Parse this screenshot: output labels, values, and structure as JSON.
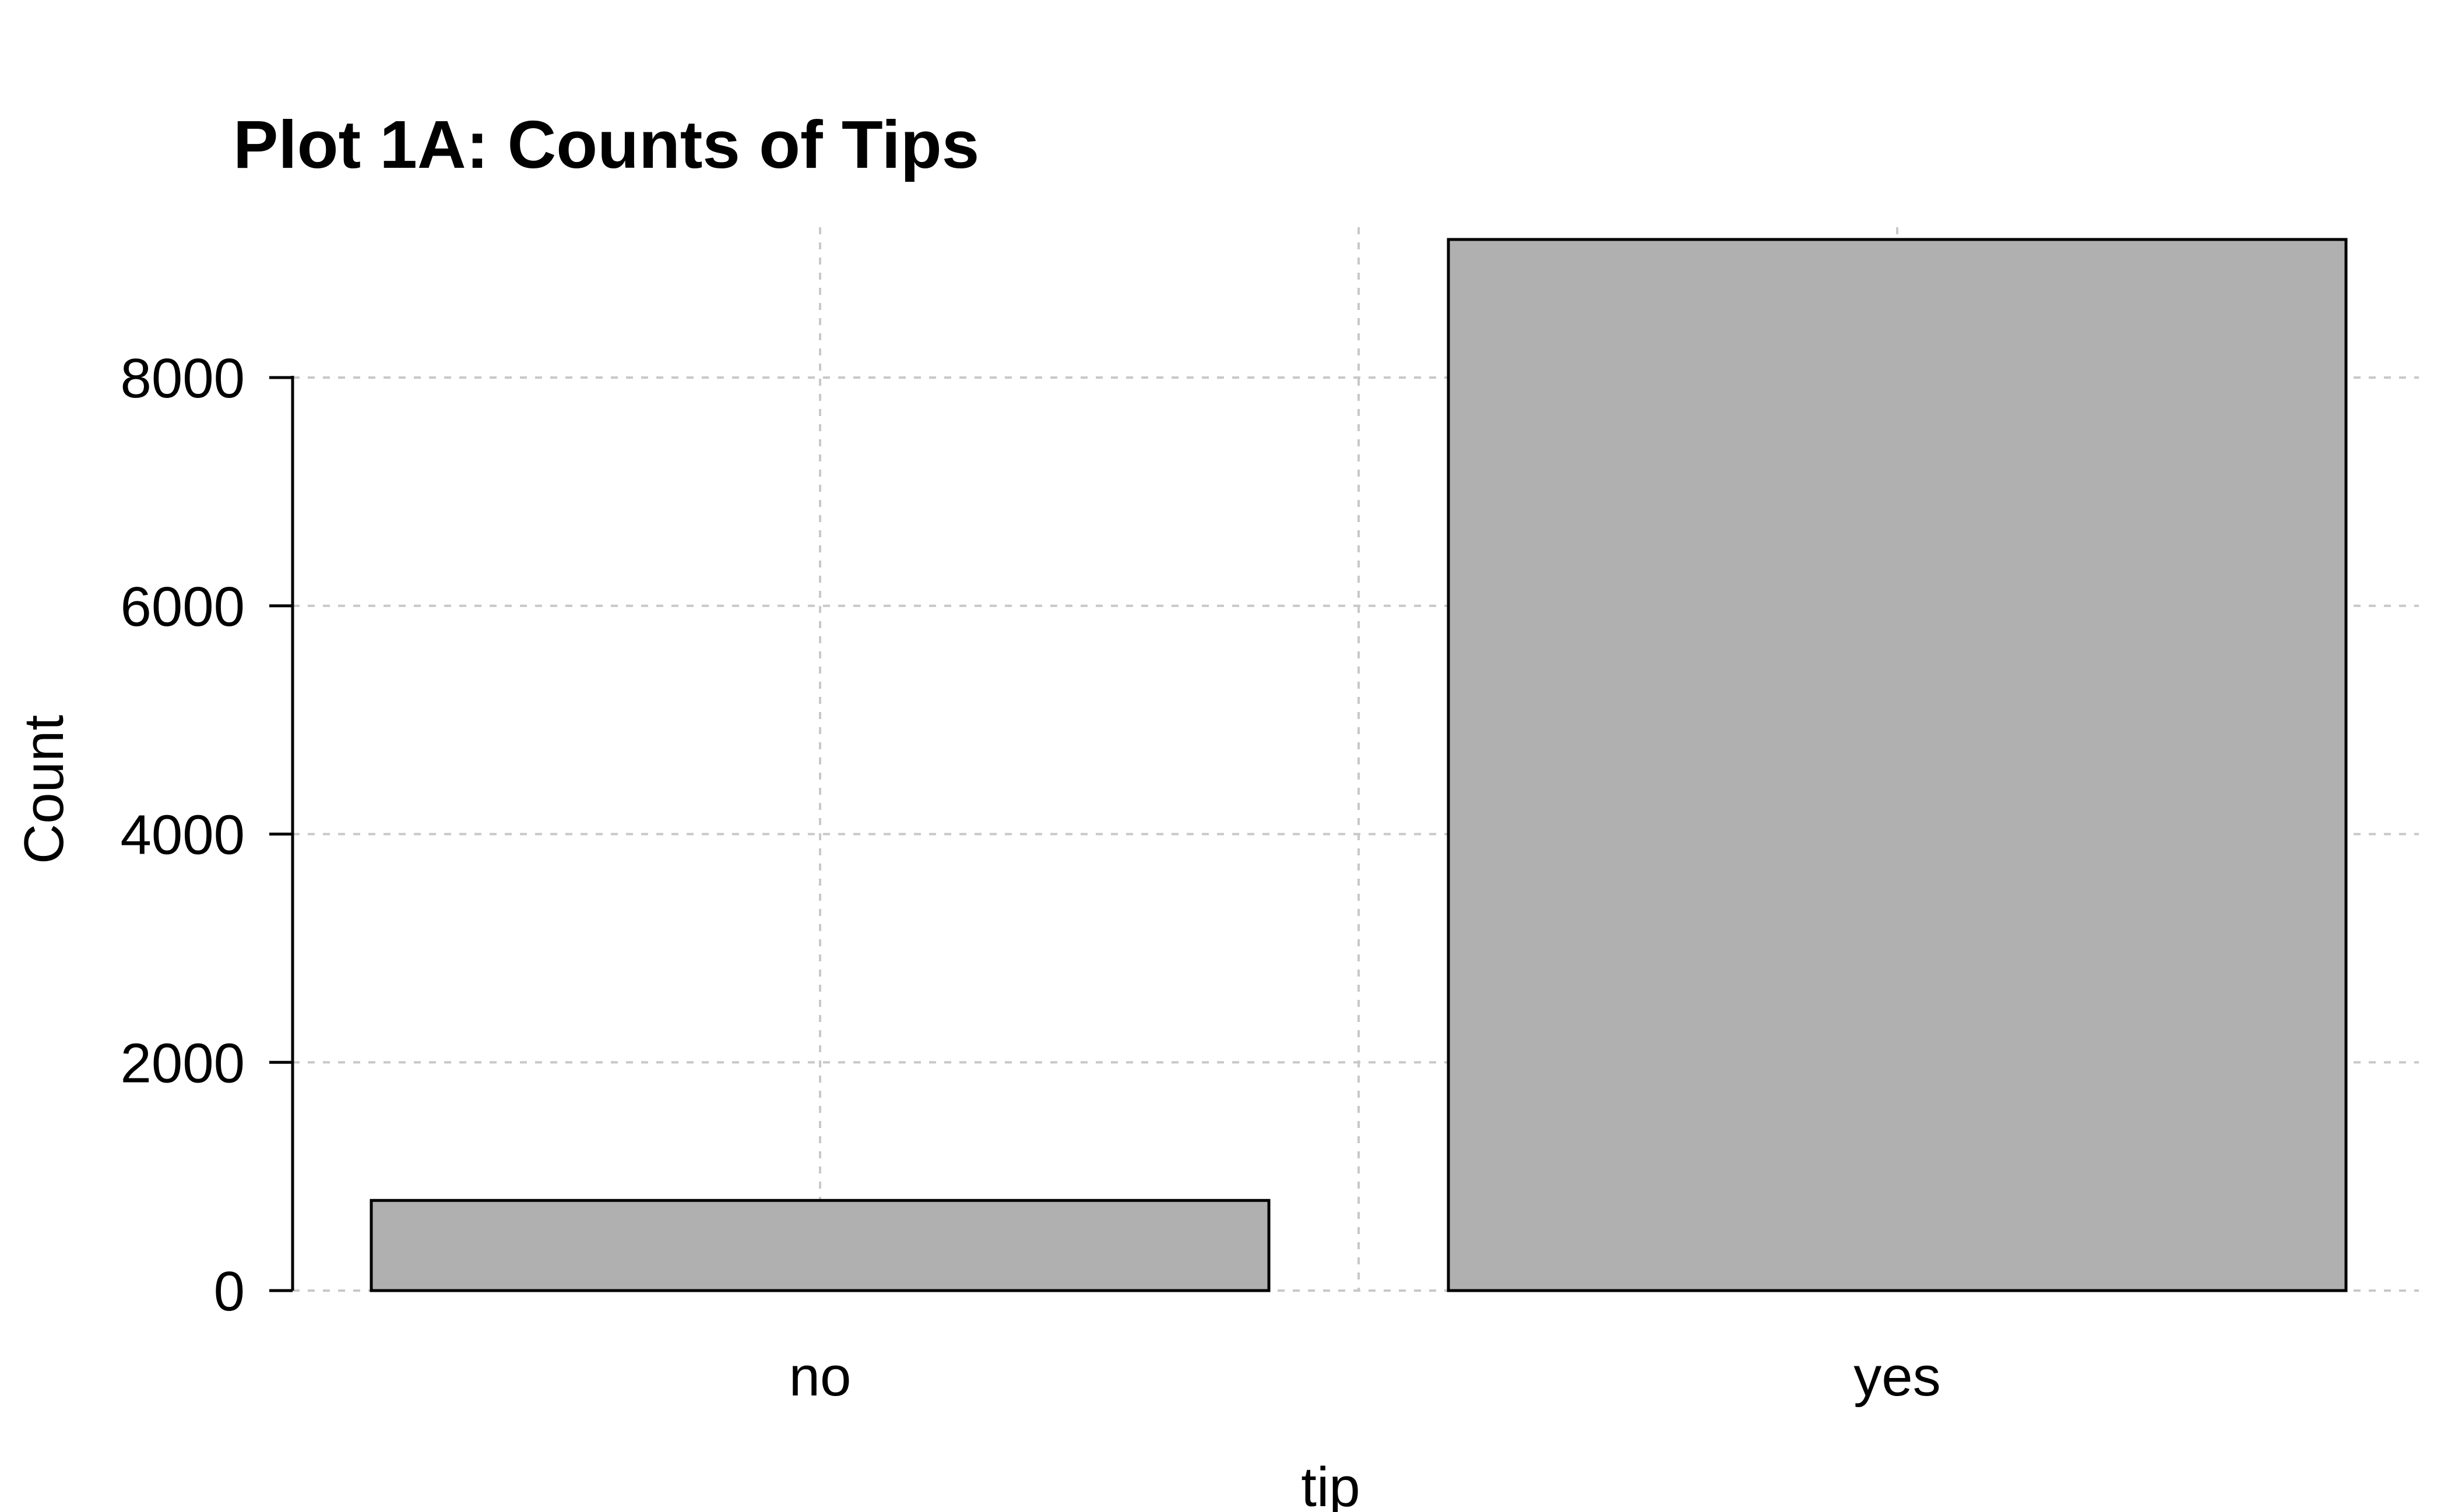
{
  "chart_data": {
    "type": "bar",
    "title": "Plot 1A: Counts of Tips",
    "xlabel": "tip",
    "ylabel": "Count",
    "categories": [
      "no",
      "yes"
    ],
    "values": [
      790,
      9210
    ],
    "ylim": [
      0,
      9200
    ],
    "yticks": [
      0,
      2000,
      4000,
      6000,
      8000
    ],
    "grid": true,
    "legend": "none",
    "colors": {
      "bar_fill": "#b0b0b0",
      "bar_stroke": "#000000",
      "grid": "#c8c8c8",
      "axis": "#000000",
      "background": "#ffffff"
    }
  }
}
